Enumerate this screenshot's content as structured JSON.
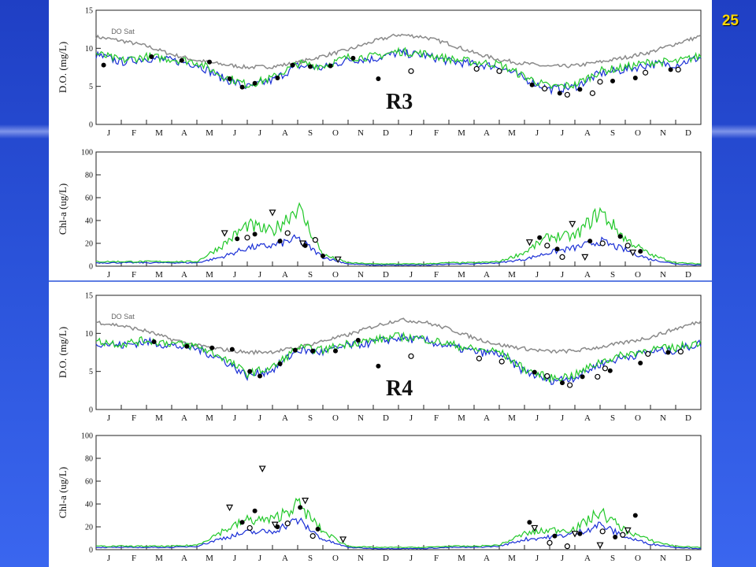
{
  "slide_number": "25",
  "colors": {
    "model_blue": "#1a2fd6",
    "model_green": "#22c82a",
    "do_sat_gray": "#8a8a8a",
    "slide_blue": "#2a52d9",
    "slide_number": "#ffd700"
  },
  "months": [
    "J",
    "F",
    "M",
    "A",
    "M",
    "J",
    "J",
    "A",
    "S",
    "O",
    "N",
    "D",
    "J",
    "F",
    "M",
    "A",
    "M",
    "J",
    "J",
    "A",
    "S",
    "O",
    "N",
    "D"
  ],
  "chart_data": [
    {
      "type": "line",
      "site": "R3",
      "variable": "do",
      "ylabel": "D.O. (mg/L)",
      "ylim": [
        0,
        15
      ],
      "yticks": [
        0,
        5,
        10,
        15
      ],
      "annotation": "DO Sat",
      "x_months": [
        0,
        1,
        2,
        3,
        4,
        5,
        6,
        7,
        8,
        9,
        10,
        11,
        12,
        13,
        14,
        15,
        16,
        17,
        18,
        19,
        20,
        21,
        22,
        23,
        24
      ],
      "series": [
        {
          "color": "#8a8a8a",
          "values": [
            11.5,
            11.0,
            10.3,
            9.2,
            8.4,
            7.9,
            7.5,
            7.6,
            8.1,
            9.0,
            9.8,
            10.9,
            11.8,
            11.5,
            10.6,
            9.4,
            8.5,
            8.0,
            7.6,
            7.7,
            8.2,
            8.8,
            9.5,
            10.6,
            11.6
          ]
        },
        {
          "color": "#1a2fd6",
          "values": [
            9.1,
            8.2,
            8.7,
            8.4,
            7.9,
            6.1,
            4.9,
            5.8,
            7.7,
            7.4,
            8.5,
            8.6,
            9.4,
            9.1,
            8.3,
            7.9,
            7.6,
            6.0,
            4.6,
            4.9,
            6.7,
            7.2,
            7.9,
            7.9,
            8.8
          ]
        },
        {
          "color": "#22c82a",
          "values": [
            9.3,
            8.4,
            8.9,
            8.6,
            8.2,
            6.4,
            5.2,
            6.1,
            8.0,
            7.7,
            8.8,
            8.9,
            9.6,
            9.3,
            8.6,
            8.2,
            7.9,
            6.3,
            4.9,
            5.2,
            7.0,
            7.5,
            8.2,
            8.2,
            9.0
          ]
        }
      ],
      "obs_filled": [
        [
          0.3,
          7.8
        ],
        [
          2.2,
          8.9
        ],
        [
          3.4,
          8.4
        ],
        [
          4.5,
          8.2
        ],
        [
          5.3,
          6.0
        ],
        [
          5.8,
          4.9
        ],
        [
          6.3,
          5.4
        ],
        [
          7.2,
          6.1
        ],
        [
          7.8,
          7.8
        ],
        [
          8.5,
          7.6
        ],
        [
          9.3,
          7.7
        ],
        [
          10.2,
          8.7
        ],
        [
          11.2,
          6.0
        ],
        [
          17.3,
          5.2
        ],
        [
          18.4,
          4.1
        ],
        [
          19.2,
          4.6
        ],
        [
          20.5,
          5.7
        ],
        [
          21.4,
          6.1
        ],
        [
          22.8,
          7.2
        ]
      ],
      "obs_open": [
        [
          12.5,
          7.0
        ],
        [
          15.1,
          7.3
        ],
        [
          16.0,
          7.0
        ],
        [
          17.8,
          4.7
        ],
        [
          18.7,
          3.9
        ],
        [
          19.7,
          4.1
        ],
        [
          20.0,
          5.6
        ],
        [
          21.8,
          6.8
        ],
        [
          23.1,
          7.2
        ]
      ]
    },
    {
      "type": "line",
      "site": "R3",
      "variable": "chla",
      "ylabel": "Chl-a (ug/L)",
      "ylim": [
        0,
        100
      ],
      "yticks": [
        0,
        20,
        40,
        60,
        80,
        100
      ],
      "x_months": [
        0,
        1,
        2,
        3,
        4,
        5,
        6,
        7,
        8,
        9,
        10,
        11,
        12,
        13,
        14,
        15,
        16,
        17,
        18,
        19,
        20,
        21,
        22,
        23,
        24
      ],
      "series": [
        {
          "color": "#1a2fd6",
          "values": [
            3,
            3,
            3,
            3,
            3,
            8,
            16,
            18,
            24,
            8,
            2,
            1,
            1,
            1,
            2,
            2,
            3,
            6,
            12,
            16,
            22,
            14,
            6,
            2,
            1
          ]
        },
        {
          "color": "#22c82a",
          "values": [
            4,
            4,
            4,
            4,
            4,
            18,
            36,
            30,
            52,
            10,
            3,
            2,
            2,
            2,
            3,
            3,
            4,
            12,
            26,
            26,
            48,
            24,
            10,
            3,
            2
          ]
        }
      ],
      "obs_filled": [
        [
          5.6,
          24
        ],
        [
          6.3,
          28
        ],
        [
          7.3,
          22
        ],
        [
          8.3,
          18
        ],
        [
          9.0,
          9
        ],
        [
          17.6,
          25
        ],
        [
          18.3,
          15
        ],
        [
          19.6,
          22
        ],
        [
          20.8,
          26
        ],
        [
          21.6,
          13
        ]
      ],
      "obs_open": [
        [
          6.0,
          25
        ],
        [
          7.6,
          29
        ],
        [
          8.7,
          23
        ],
        [
          17.9,
          18
        ],
        [
          18.5,
          8
        ],
        [
          20.1,
          20
        ],
        [
          21.1,
          18
        ]
      ],
      "obs_triangle": [
        [
          5.1,
          29
        ],
        [
          7.0,
          47
        ],
        [
          8.2,
          20
        ],
        [
          9.6,
          6
        ],
        [
          17.2,
          21
        ],
        [
          18.9,
          37
        ],
        [
          19.4,
          8
        ],
        [
          21.3,
          12
        ]
      ]
    },
    {
      "type": "line",
      "site": "R4",
      "variable": "do",
      "ylabel": "D.O. (mg/L)",
      "ylim": [
        0,
        15
      ],
      "yticks": [
        0,
        5,
        10,
        15
      ],
      "annotation": "DO Sat",
      "x_months": [
        0,
        1,
        2,
        3,
        4,
        5,
        6,
        7,
        8,
        9,
        10,
        11,
        12,
        13,
        14,
        15,
        16,
        17,
        18,
        19,
        20,
        21,
        22,
        23,
        24
      ],
      "series": [
        {
          "color": "#8a8a8a",
          "values": [
            11.5,
            11.0,
            10.3,
            9.2,
            8.4,
            7.9,
            7.5,
            7.6,
            8.1,
            9.0,
            9.8,
            10.9,
            11.8,
            11.5,
            10.6,
            9.4,
            8.5,
            8.0,
            7.6,
            7.7,
            8.2,
            8.8,
            9.5,
            10.6,
            11.6
          ]
        },
        {
          "color": "#1a2fd6",
          "values": [
            8.8,
            8.4,
            8.9,
            8.4,
            8.0,
            6.6,
            4.4,
            5.2,
            7.8,
            7.5,
            8.4,
            8.8,
            9.4,
            9.1,
            8.3,
            7.6,
            7.3,
            5.0,
            3.8,
            4.2,
            6.0,
            6.9,
            7.6,
            7.8,
            8.7
          ]
        },
        {
          "color": "#22c82a",
          "values": [
            9.0,
            8.6,
            9.1,
            8.7,
            8.3,
            6.9,
            4.7,
            5.5,
            8.1,
            7.8,
            8.7,
            9.1,
            9.6,
            9.3,
            8.6,
            7.9,
            7.6,
            5.3,
            4.1,
            4.5,
            6.3,
            7.2,
            7.9,
            8.1,
            8.9
          ]
        }
      ],
      "obs_filled": [
        [
          2.3,
          8.9
        ],
        [
          3.6,
          8.3
        ],
        [
          4.6,
          8.1
        ],
        [
          5.4,
          7.9
        ],
        [
          6.1,
          5.0
        ],
        [
          6.5,
          4.4
        ],
        [
          7.3,
          6.0
        ],
        [
          7.9,
          7.8
        ],
        [
          8.6,
          7.7
        ],
        [
          9.5,
          7.7
        ],
        [
          10.4,
          9.1
        ],
        [
          11.2,
          5.7
        ],
        [
          17.4,
          4.9
        ],
        [
          18.5,
          3.5
        ],
        [
          19.3,
          4.3
        ],
        [
          20.4,
          5.1
        ],
        [
          21.6,
          6.1
        ],
        [
          22.7,
          7.5
        ]
      ],
      "obs_open": [
        [
          12.5,
          7.0
        ],
        [
          15.2,
          6.7
        ],
        [
          16.1,
          6.3
        ],
        [
          17.9,
          4.4
        ],
        [
          18.8,
          3.2
        ],
        [
          19.9,
          4.3
        ],
        [
          20.2,
          5.4
        ],
        [
          21.9,
          7.3
        ],
        [
          23.2,
          7.6
        ]
      ]
    },
    {
      "type": "line",
      "site": "R4",
      "variable": "chla",
      "ylabel": "Chl-a (ug/L)",
      "ylim": [
        0,
        100
      ],
      "yticks": [
        0,
        20,
        40,
        60,
        80,
        100
      ],
      "x_months": [
        0,
        1,
        2,
        3,
        4,
        5,
        6,
        7,
        8,
        9,
        10,
        11,
        12,
        13,
        14,
        15,
        16,
        17,
        18,
        19,
        20,
        21,
        22,
        23,
        24
      ],
      "series": [
        {
          "color": "#1a2fd6",
          "values": [
            2,
            2,
            2,
            2,
            3,
            10,
            15,
            16,
            26,
            9,
            2,
            1,
            1,
            1,
            2,
            2,
            3,
            9,
            11,
            14,
            22,
            11,
            5,
            2,
            1
          ]
        },
        {
          "color": "#22c82a",
          "values": [
            3,
            3,
            3,
            3,
            4,
            16,
            26,
            26,
            40,
            16,
            3,
            2,
            2,
            2,
            3,
            3,
            4,
            14,
            17,
            18,
            33,
            17,
            8,
            3,
            2
          ]
        }
      ],
      "obs_filled": [
        [
          5.8,
          24
        ],
        [
          6.3,
          34
        ],
        [
          7.2,
          20
        ],
        [
          8.1,
          37
        ],
        [
          8.8,
          18
        ],
        [
          17.2,
          24
        ],
        [
          18.2,
          12
        ],
        [
          19.2,
          14
        ],
        [
          20.6,
          11
        ],
        [
          21.4,
          30
        ]
      ],
      "obs_open": [
        [
          6.1,
          19
        ],
        [
          7.6,
          23
        ],
        [
          8.6,
          12
        ],
        [
          18.0,
          6
        ],
        [
          18.7,
          3
        ],
        [
          20.1,
          16
        ],
        [
          20.9,
          13
        ]
      ],
      "obs_triangle": [
        [
          5.3,
          37
        ],
        [
          6.6,
          71
        ],
        [
          7.1,
          22
        ],
        [
          8.3,
          43
        ],
        [
          9.8,
          9
        ],
        [
          17.4,
          19
        ],
        [
          19.0,
          14
        ],
        [
          20.0,
          4
        ],
        [
          21.1,
          17
        ]
      ]
    }
  ],
  "labels": {
    "r3": "R3",
    "r4": "R4"
  }
}
